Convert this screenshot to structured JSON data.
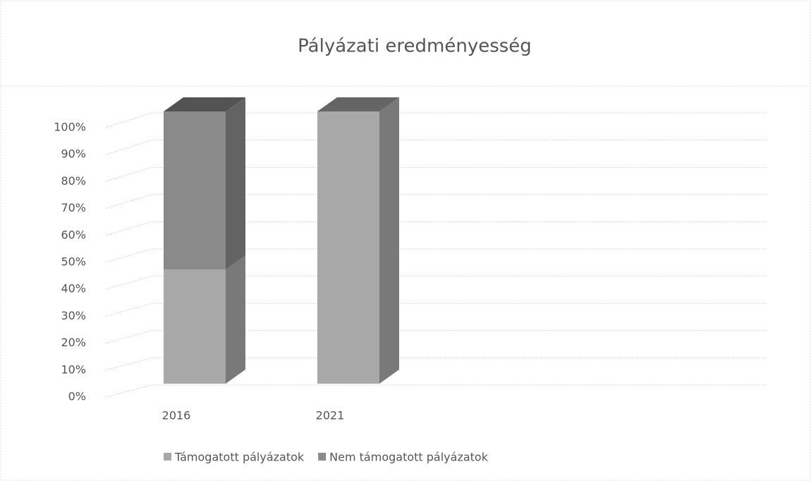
{
  "chart_data": {
    "type": "bar3d_stacked",
    "title": "Pályázati eredményesség",
    "categories": [
      "2016",
      "2021"
    ],
    "series": [
      {
        "name": "Támogatott pályázatok",
        "color": "#a8a8a8",
        "values": [
          42,
          100
        ]
      },
      {
        "name": "Nem támogatott pályázatok",
        "color": "#8a8a8a",
        "values": [
          58,
          0
        ]
      }
    ],
    "ylim": [
      0,
      100
    ],
    "yticks": [
      {
        "value": 0,
        "label": "0%"
      },
      {
        "value": 10,
        "label": "10%"
      },
      {
        "value": 20,
        "label": "20%"
      },
      {
        "value": 30,
        "label": "30%"
      },
      {
        "value": 40,
        "label": "40%"
      },
      {
        "value": 50,
        "label": "50%"
      },
      {
        "value": 60,
        "label": "60%"
      },
      {
        "value": 70,
        "label": "70%"
      },
      {
        "value": 80,
        "label": "80%"
      },
      {
        "value": 90,
        "label": "90%"
      },
      {
        "value": 100,
        "label": "100%"
      }
    ],
    "grid": true,
    "legend": "bottom"
  }
}
